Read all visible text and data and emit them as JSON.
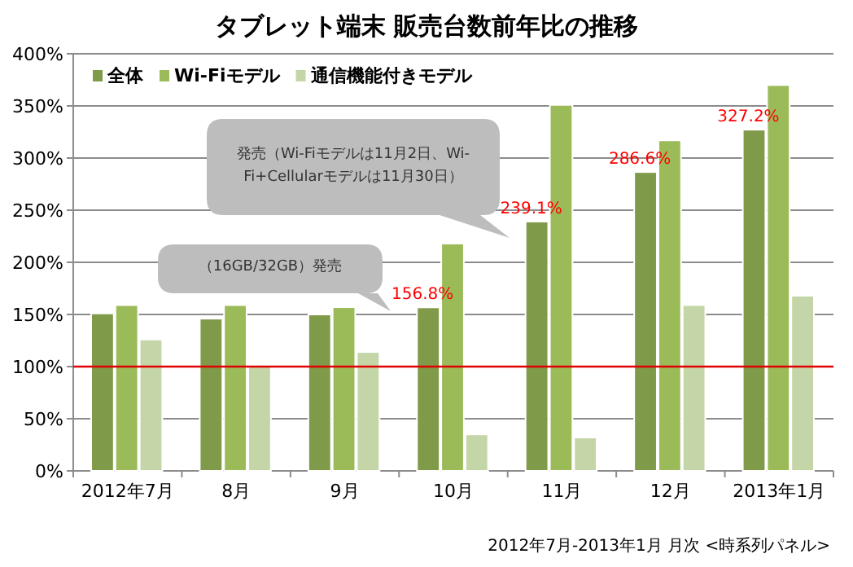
{
  "chart_data": {
    "type": "bar",
    "title": "タブレット端末 販売台数前年比の推移",
    "categories": [
      "2012年7月",
      "8月",
      "9月",
      "10月",
      "11月",
      "12月",
      "2013年1月"
    ],
    "series": [
      {
        "name": "全体",
        "color": "#7f9a48",
        "values": [
          151,
          146,
          150,
          156.8,
          239.1,
          286.6,
          327.2
        ],
        "value_labels": [
          null,
          null,
          null,
          "156.8%",
          "239.1%",
          "286.6%",
          "327.2%"
        ]
      },
      {
        "name": "Wi-Fiモデル",
        "color": "#9bbb59",
        "values": [
          159,
          159,
          157,
          218,
          351,
          317,
          370
        ]
      },
      {
        "name": "通信機能付きモデル",
        "color": "#c4d6a8",
        "values": [
          126,
          100,
          114,
          35,
          32,
          159,
          168
        ]
      }
    ],
    "ylim": [
      0,
      400
    ],
    "yticks": [
      {
        "value": 0,
        "label": "0%"
      },
      {
        "value": 50,
        "label": "50%"
      },
      {
        "value": 100,
        "label": "100%"
      },
      {
        "value": 150,
        "label": "150%"
      },
      {
        "value": 200,
        "label": "200%"
      },
      {
        "value": 250,
        "label": "250%"
      },
      {
        "value": 300,
        "label": "300%"
      },
      {
        "value": 350,
        "label": "350%"
      },
      {
        "value": 400,
        "label": "400%"
      }
    ],
    "grid": "y",
    "legend": "top left",
    "ref_lines": [
      {
        "axis": "y",
        "value": 100,
        "color": "#e00000"
      }
    ],
    "annotations": [
      "発売（Wi-Fiモデルは11月2日、Wi-Fi+Cellularモデルは11月30日）",
      "（16GB/32GB）発売",
      "2012年7月-2013年1月 月次 <時系列パネル>"
    ]
  }
}
